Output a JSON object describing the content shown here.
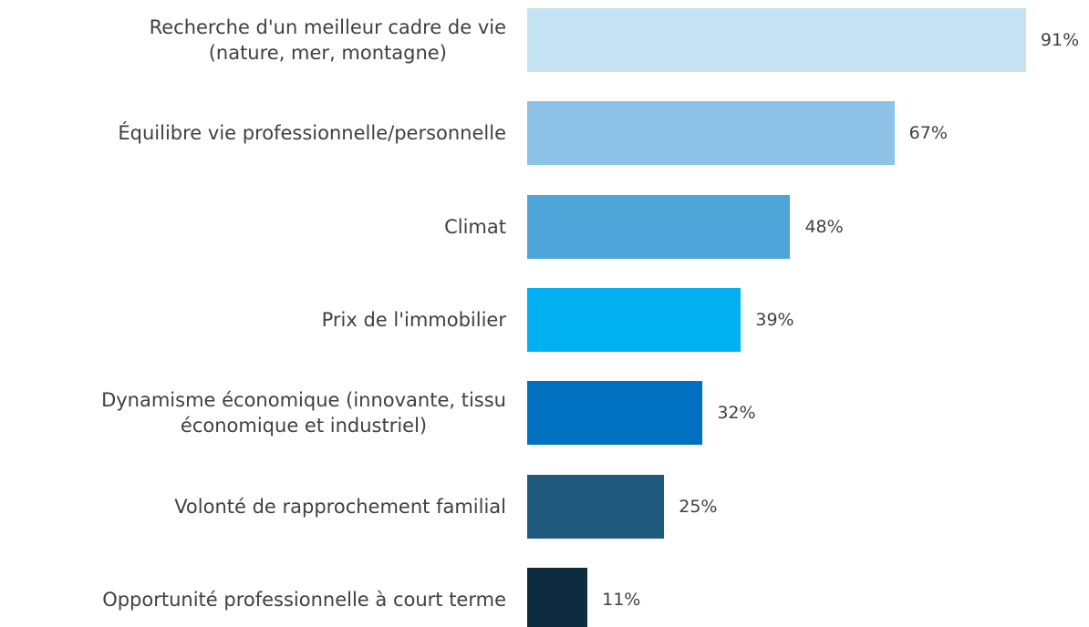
{
  "chart_data": {
    "type": "bar",
    "orientation": "horizontal",
    "categories": [
      "Recherche d'un meilleur cadre de vie\n(nature, mer, montagne)",
      "Équilibre vie professionnelle/personnelle",
      "Climat",
      "Prix de l'immobilier",
      "Dynamisme économique (innovante, tissu\néconomique et industriel)",
      "Volonté de rapprochement familial",
      "Opportunité professionnelle à court terme"
    ],
    "values": [
      91,
      67,
      48,
      39,
      32,
      25,
      11
    ],
    "value_labels": [
      "91%",
      "67%",
      "48%",
      "39%",
      "32%",
      "25%",
      "11%"
    ],
    "colors": [
      "#c5e2f3",
      "#8dc3e6",
      "#4ea5da",
      "#00b0f0",
      "#0070c0",
      "#1f5a7d",
      "#0f2b3f"
    ]
  }
}
